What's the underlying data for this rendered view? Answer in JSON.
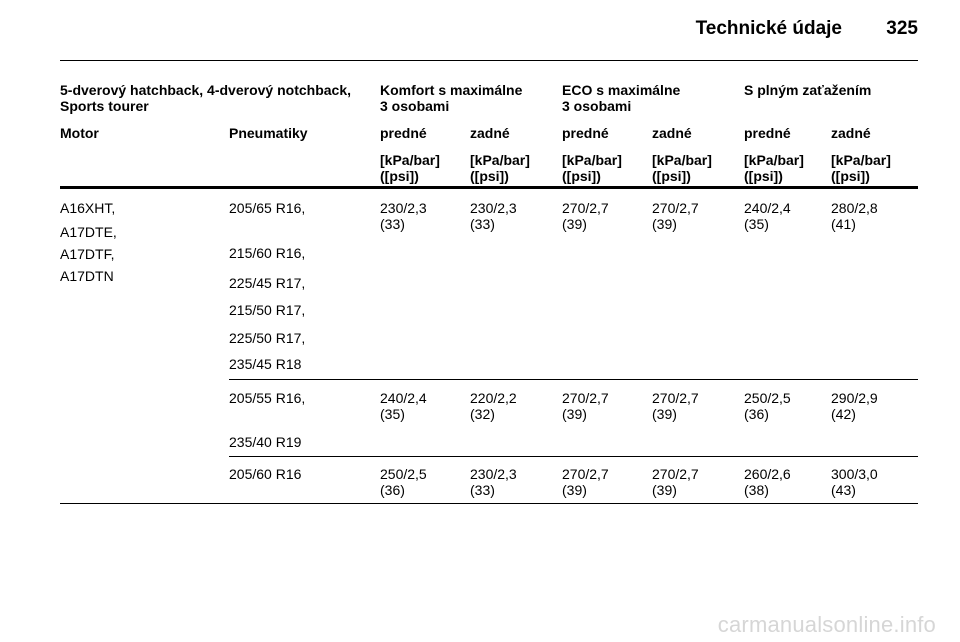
{
  "header": {
    "title": "Technické údaje",
    "page_number": "325"
  },
  "table": {
    "group_header": {
      "col1": [
        "5-dverový hatchback, 4-dverový notchback,",
        "Sports tourer"
      ],
      "komfort": [
        "Komfort s maximálne",
        "3 osobami"
      ],
      "eco": [
        "ECO s maximálne",
        "3 osobami"
      ],
      "full": "S plným zaťažením"
    },
    "col_headers": [
      "Motor",
      "Pneumatiky",
      "predné",
      "zadné",
      "predné",
      "zadné",
      "predné",
      "zadné"
    ],
    "unit_line1": "[kPa/bar]",
    "unit_line2": "([psi])",
    "motors": [
      "A16XHT,",
      "A17DTE,",
      "A17DTF,",
      "A17DTN"
    ],
    "rows": [
      {
        "tires": [
          "205/65 R16,",
          "215/60 R16,",
          "225/45 R17,",
          "215/50 R17,",
          "225/50 R17,",
          "235/45 R18"
        ],
        "values": [
          [
            "230/2,3",
            "(33)"
          ],
          [
            "230/2,3",
            "(33)"
          ],
          [
            "270/2,7",
            "(39)"
          ],
          [
            "270/2,7",
            "(39)"
          ],
          [
            "240/2,4",
            "(35)"
          ],
          [
            "280/2,8",
            "(41)"
          ]
        ]
      },
      {
        "tires": [
          "205/55 R16,",
          "235/40 R19"
        ],
        "values": [
          [
            "240/2,4",
            "(35)"
          ],
          [
            "220/2,2",
            "(32)"
          ],
          [
            "270/2,7",
            "(39)"
          ],
          [
            "270/2,7",
            "(39)"
          ],
          [
            "250/2,5",
            "(36)"
          ],
          [
            "290/2,9",
            "(42)"
          ]
        ]
      },
      {
        "tires": [
          "205/60 R16"
        ],
        "values": [
          [
            "250/2,5",
            "(36)"
          ],
          [
            "230/2,3",
            "(33)"
          ],
          [
            "270/2,7",
            "(39)"
          ],
          [
            "270/2,7",
            "(39)"
          ],
          [
            "260/2,6",
            "(38)"
          ],
          [
            "300/3,0",
            "(43)"
          ]
        ]
      }
    ]
  },
  "watermark": "carmanualsonline.info"
}
